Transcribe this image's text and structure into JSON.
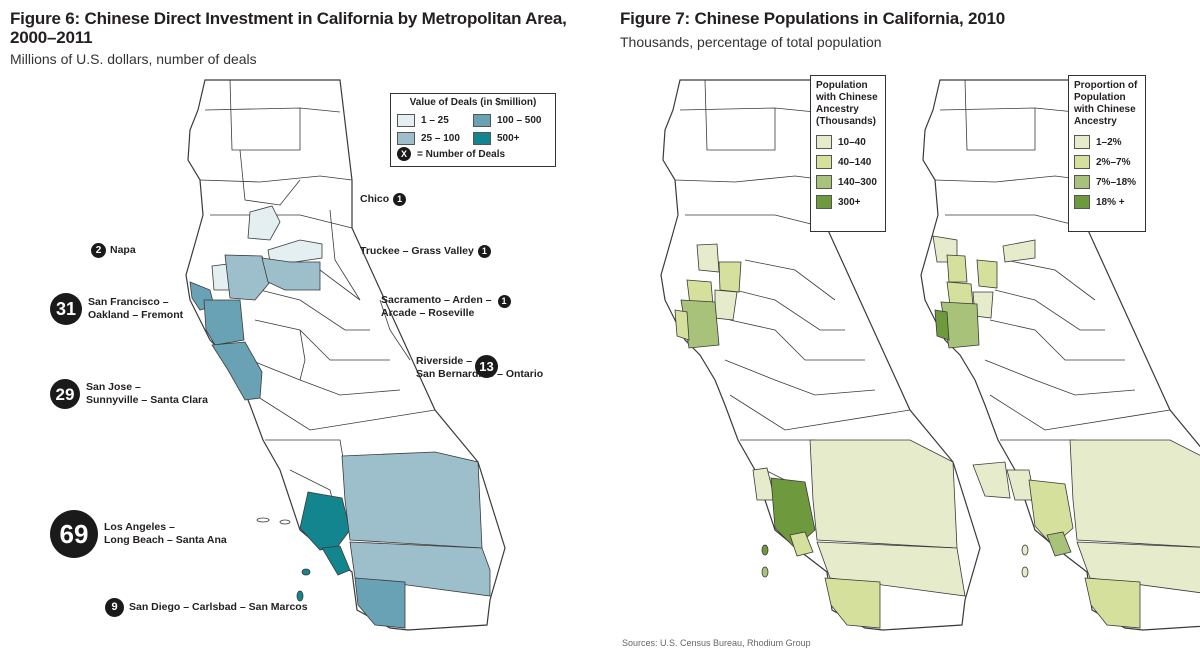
{
  "figure6": {
    "title_line1": "Figure 6: Chinese Direct Investment in California by Metropolitan Area,",
    "title_line2": "2000–2011",
    "subtitle": "Millions of U.S. dollars, number of deals",
    "legend": {
      "title": "Value of Deals (in $million)",
      "items": [
        {
          "label": "1 – 25",
          "color": "#e4eff2"
        },
        {
          "label": "100 – 500",
          "color": "#6aa2b5"
        },
        {
          "label": "25 – 100",
          "color": "#9dbfcb"
        },
        {
          "label": "500+",
          "color": "#13858f"
        }
      ],
      "deals_symbol": "X",
      "deals_label": "= Number of Deals"
    },
    "metros": [
      {
        "deals": "1",
        "line1": "Chico",
        "line2": ""
      },
      {
        "deals": "2",
        "line1": "Napa",
        "line2": ""
      },
      {
        "deals": "1",
        "line1": "Truckee – Grass Valley",
        "line2": ""
      },
      {
        "deals": "31",
        "line1": "San Francisco –",
        "line2": "Oakland – Fremont"
      },
      {
        "deals": "1",
        "line1": "Sacramento – Arden –",
        "line2": "Arcade – Roseville"
      },
      {
        "deals": "13",
        "line1": "Riverside –",
        "line2": "San Bernardino – Ontario"
      },
      {
        "deals": "29",
        "line1": "San Jose –",
        "line2": "Sunnyville – Santa Clara"
      },
      {
        "deals": "69",
        "line1": "Los Angeles –",
        "line2": "Long Beach – Santa Ana"
      },
      {
        "deals": "9",
        "line1": "San Diego – Carlsbad – San Marcos",
        "line2": ""
      }
    ]
  },
  "figure7": {
    "title": "Figure 7: Chinese Populations in California, 2010",
    "subtitle": "Thousands, percentage of total population",
    "legend_population": {
      "title_line1": "Population",
      "title_line2": "with Chinese",
      "title_line3": "Ancestry",
      "title_line4": "(Thousands)",
      "items": [
        {
          "label": "10–40",
          "color": "#e6ebcb"
        },
        {
          "label": "40–140",
          "color": "#d4e09b"
        },
        {
          "label": "140–300",
          "color": "#a8c27a"
        },
        {
          "label": "300+",
          "color": "#6e9a3d"
        }
      ]
    },
    "legend_proportion": {
      "title_line1": "Proportion of",
      "title_line2": "Population",
      "title_line3": "with Chinese",
      "title_line4": "Ancestry",
      "items": [
        {
          "label": "1–2%",
          "color": "#e6ebcb"
        },
        {
          "label": "2%–7%",
          "color": "#d4e09b"
        },
        {
          "label": "7%–18%",
          "color": "#a8c27a"
        },
        {
          "label": "18% +",
          "color": "#6e9a3d"
        }
      ]
    },
    "source": "Sources: U.S. Census Bureau, Rhodium Group"
  },
  "colors": {
    "stroke": "#3a3a3a",
    "teal_light": "#e4eff2",
    "teal_mid": "#9dbfcb",
    "teal_dark": "#6aa2b5",
    "teal_max": "#13858f",
    "green_1": "#e6ebcb",
    "green_2": "#d4e09b",
    "green_3": "#a8c27a",
    "green_4": "#6e9a3d"
  }
}
